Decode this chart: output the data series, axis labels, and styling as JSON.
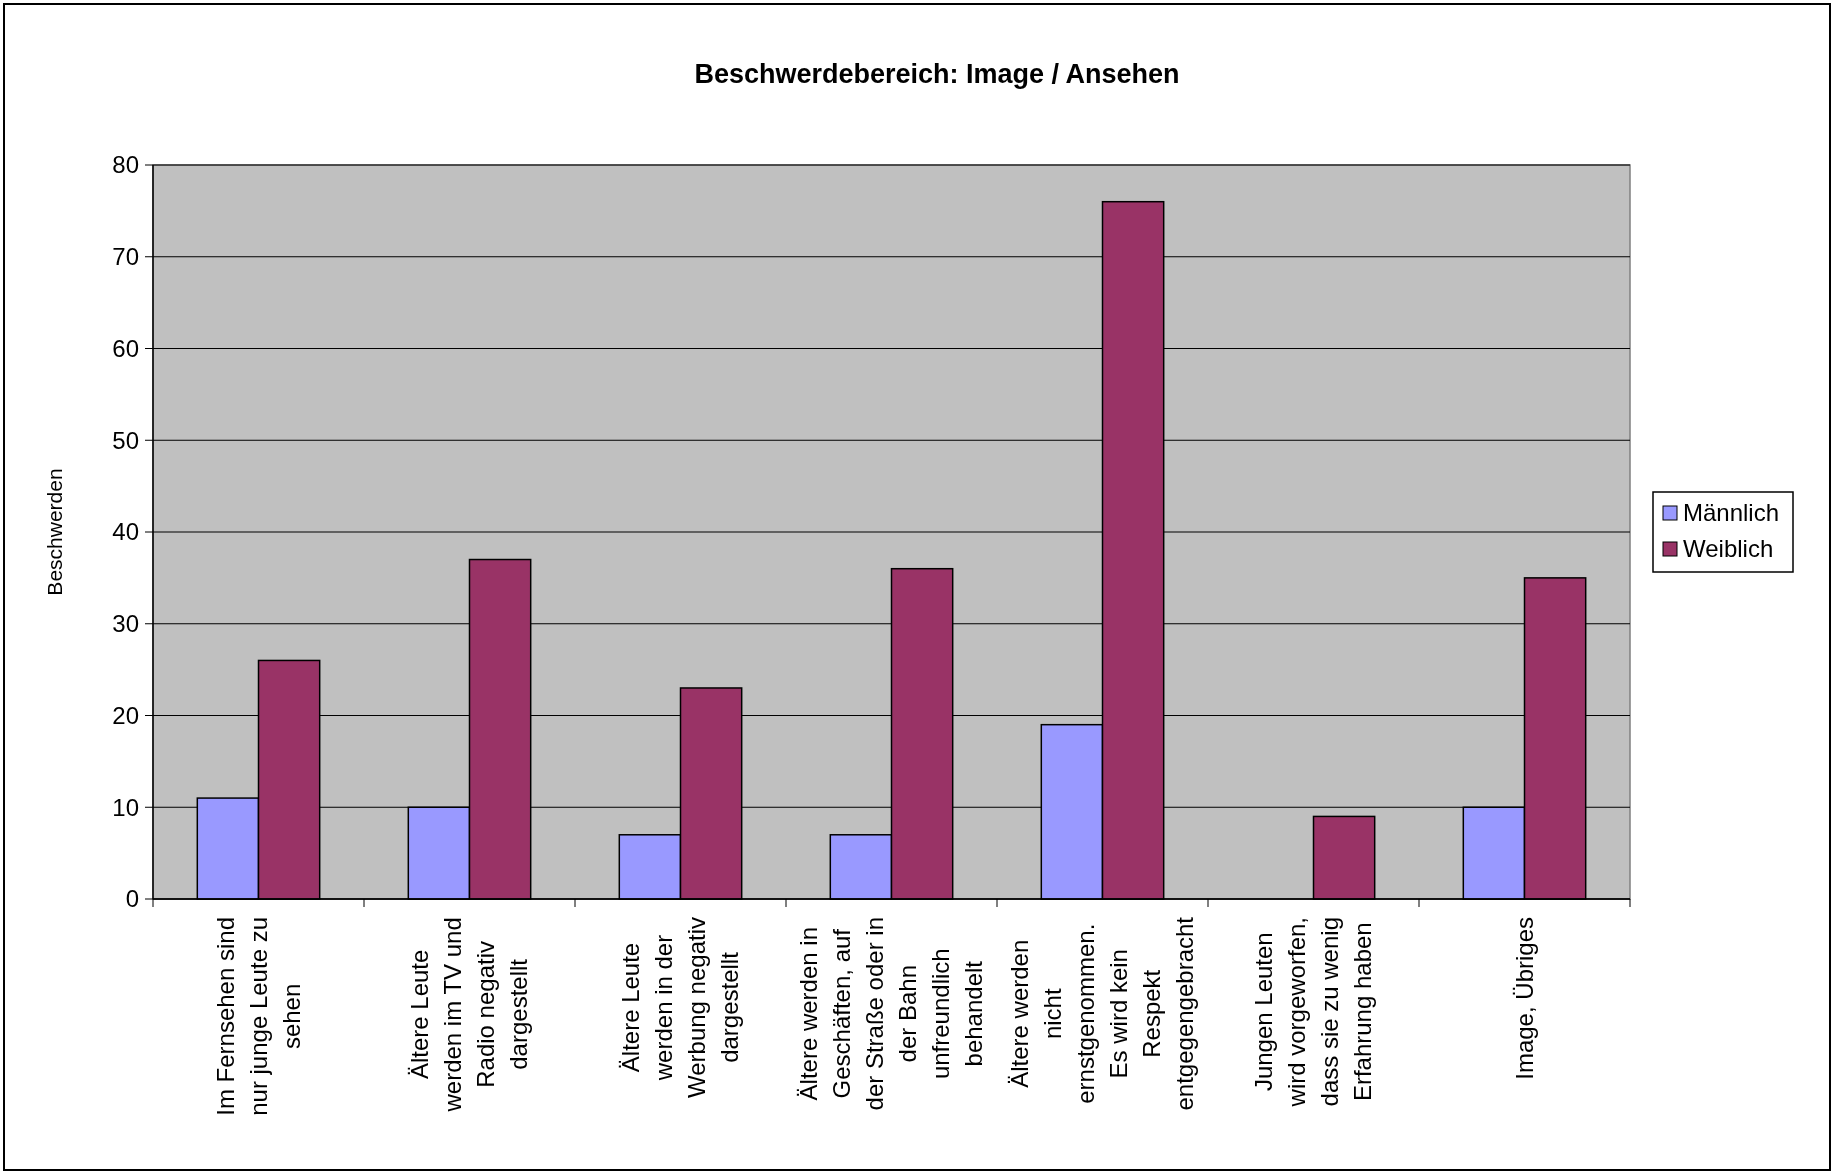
{
  "chart_data": {
    "type": "bar",
    "title": "Beschwerdebereich: Image / Ansehen",
    "ylabel": "Beschwerden",
    "categories": [
      "Im Fernsehen sind\nnur junge Leute zu\nsehen",
      "Ältere Leute\nwerden im TV und\nRadio negativ\ndargestellt",
      "Ältere Leute\nwerden in der\nWerbung negativ\ndargestellt",
      "Ältere werden in\nGeschäften, auf\nder Straße oder in\nder Bahn\nunfreundlich\nbehandelt",
      "Ältere werden\nnicht\nernstgenommen.\nEs wird kein\nRespekt\nentgegengebracht",
      "Jungen Leuten\nwird vorgeworfen,\ndass sie zu wenig\nErfahrung haben",
      "Image, Übriges"
    ],
    "series": [
      {
        "name": "Männlich",
        "color": "#9999ff",
        "values": [
          11,
          10,
          7,
          7,
          19,
          0,
          10
        ]
      },
      {
        "name": "Weiblich",
        "color": "#993366",
        "values": [
          26,
          37,
          23,
          36,
          76,
          9,
          35
        ]
      }
    ],
    "ylim": [
      0,
      80
    ],
    "yticks": [
      0,
      10,
      20,
      30,
      40,
      50,
      60,
      70,
      80
    ],
    "grid": "y",
    "legend": "right"
  }
}
